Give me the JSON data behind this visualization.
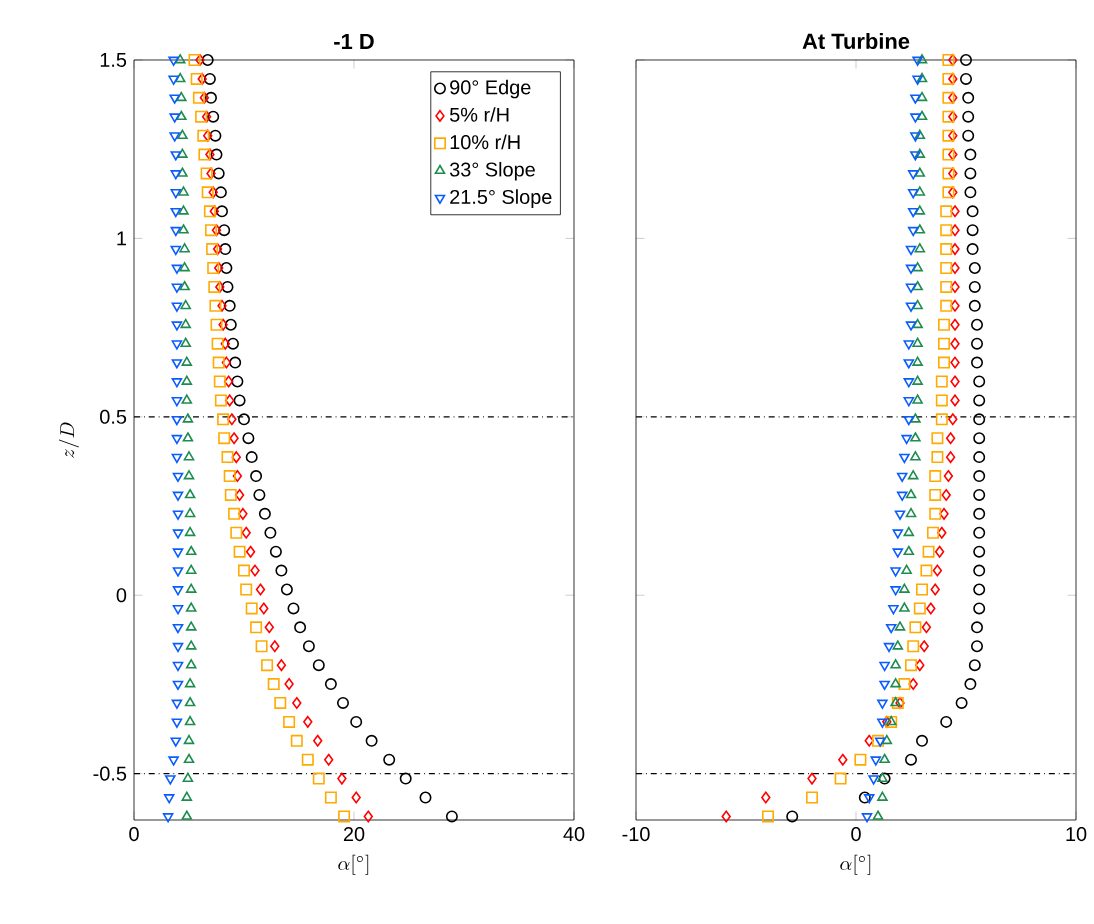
{
  "chart_data": [
    {
      "type": "scatter",
      "title": "-1 D",
      "xlabel": "\\alpha[^\\circ]",
      "ylabel": "z/D",
      "xlim": [
        0,
        40
      ],
      "ylim": [
        -0.63,
        1.5
      ],
      "xticks": [
        0,
        20,
        40
      ],
      "yticks": [
        -0.5,
        0,
        0.5,
        1,
        1.5
      ],
      "legend": "top right",
      "grid": false,
      "ref_lines": [
        {
          "axis": "y",
          "value": 0.5,
          "color": "#000000",
          "line_style": "dashdot"
        },
        {
          "axis": "y",
          "value": -0.5,
          "color": "#000000",
          "line_style": "dashdot"
        }
      ],
      "series": [
        {
          "name": "90° Edge",
          "color": "#000000",
          "marker": "circle",
          "x": [
            28.9,
            26.5,
            24.7,
            23.2,
            21.6,
            20.2,
            19.0,
            17.9,
            16.8,
            15.9,
            15.1,
            14.5,
            13.9,
            13.4,
            12.9,
            12.4,
            11.9,
            11.4,
            11.1,
            10.7,
            10.4,
            10.0,
            9.6,
            9.4,
            9.2,
            9.0,
            8.8,
            8.7,
            8.5,
            8.4,
            8.3,
            8.2,
            8.0,
            7.9,
            7.7,
            7.5,
            7.4,
            7.2,
            7.0,
            6.9,
            6.7
          ],
          "values": [
            -0.62,
            -0.567,
            -0.514,
            -0.461,
            -0.408,
            -0.355,
            -0.302,
            -0.249,
            -0.196,
            -0.143,
            -0.09,
            -0.037,
            0.016,
            0.069,
            0.122,
            0.175,
            0.228,
            0.281,
            0.334,
            0.387,
            0.44,
            0.493,
            0.546,
            0.599,
            0.652,
            0.705,
            0.758,
            0.811,
            0.864,
            0.917,
            0.97,
            1.023,
            1.076,
            1.129,
            1.182,
            1.235,
            1.288,
            1.341,
            1.394,
            1.447,
            1.5
          ]
        },
        {
          "name": "5% r/H",
          "color": "#ff0000",
          "marker": "diamond",
          "x": [
            21.3,
            20.2,
            18.9,
            17.7,
            16.7,
            15.8,
            14.8,
            14.1,
            13.4,
            12.8,
            12.3,
            11.8,
            11.5,
            11.0,
            10.6,
            10.2,
            9.9,
            9.6,
            9.4,
            9.3,
            9.1,
            8.9,
            8.7,
            8.6,
            8.4,
            8.3,
            8.1,
            8.0,
            7.8,
            7.7,
            7.6,
            7.5,
            7.3,
            7.2,
            7.0,
            6.9,
            6.7,
            6.6,
            6.4,
            6.2,
            6.0
          ],
          "values": [
            -0.62,
            -0.567,
            -0.514,
            -0.461,
            -0.408,
            -0.355,
            -0.302,
            -0.249,
            -0.196,
            -0.143,
            -0.09,
            -0.037,
            0.016,
            0.069,
            0.122,
            0.175,
            0.228,
            0.281,
            0.334,
            0.387,
            0.44,
            0.493,
            0.546,
            0.599,
            0.652,
            0.705,
            0.758,
            0.811,
            0.864,
            0.917,
            0.97,
            1.023,
            1.076,
            1.129,
            1.182,
            1.235,
            1.288,
            1.341,
            1.394,
            1.447,
            1.5
          ]
        },
        {
          "name": "10% r/H",
          "color": "#ffaa00",
          "marker": "square",
          "x": [
            19.1,
            17.9,
            16.8,
            15.8,
            14.8,
            14.1,
            13.3,
            12.7,
            12.1,
            11.6,
            11.1,
            10.7,
            10.2,
            10.0,
            9.6,
            9.3,
            9.1,
            8.8,
            8.7,
            8.5,
            8.2,
            8.1,
            7.9,
            7.8,
            7.7,
            7.6,
            7.5,
            7.4,
            7.3,
            7.2,
            7.1,
            7.0,
            6.9,
            6.7,
            6.6,
            6.4,
            6.3,
            6.1,
            5.9,
            5.7,
            5.5
          ],
          "values": [
            -0.62,
            -0.567,
            -0.514,
            -0.461,
            -0.408,
            -0.355,
            -0.302,
            -0.249,
            -0.196,
            -0.143,
            -0.09,
            -0.037,
            0.016,
            0.069,
            0.122,
            0.175,
            0.228,
            0.281,
            0.334,
            0.387,
            0.44,
            0.493,
            0.546,
            0.599,
            0.652,
            0.705,
            0.758,
            0.811,
            0.864,
            0.917,
            0.97,
            1.023,
            1.076,
            1.129,
            1.182,
            1.235,
            1.288,
            1.341,
            1.394,
            1.447,
            1.5
          ]
        },
        {
          "name": "33° Slope",
          "color": "#1e8c4e",
          "marker": "triangle",
          "x": [
            4.8,
            4.8,
            4.9,
            5.0,
            5.0,
            5.1,
            5.1,
            5.1,
            5.2,
            5.2,
            5.2,
            5.2,
            5.2,
            5.2,
            5.2,
            5.1,
            5.1,
            5.1,
            5.0,
            5.0,
            4.9,
            4.9,
            4.8,
            4.8,
            4.8,
            4.7,
            4.7,
            4.7,
            4.6,
            4.6,
            4.6,
            4.5,
            4.5,
            4.5,
            4.4,
            4.4,
            4.4,
            4.3,
            4.3,
            4.2,
            4.2
          ],
          "values": [
            -0.62,
            -0.567,
            -0.514,
            -0.461,
            -0.408,
            -0.355,
            -0.302,
            -0.249,
            -0.196,
            -0.143,
            -0.09,
            -0.037,
            0.016,
            0.069,
            0.122,
            0.175,
            0.228,
            0.281,
            0.334,
            0.387,
            0.44,
            0.493,
            0.546,
            0.599,
            0.652,
            0.705,
            0.758,
            0.811,
            0.864,
            0.917,
            0.97,
            1.023,
            1.076,
            1.129,
            1.182,
            1.235,
            1.288,
            1.341,
            1.394,
            1.447,
            1.5
          ]
        },
        {
          "name": "21.5° Slope",
          "color": "#0a5cff",
          "marker": "triangle_down",
          "x": [
            3.1,
            3.2,
            3.3,
            3.6,
            3.8,
            3.9,
            3.9,
            4.0,
            4.0,
            4.0,
            4.0,
            4.0,
            4.0,
            4.0,
            4.0,
            4.0,
            4.0,
            4.0,
            4.0,
            3.9,
            3.9,
            3.9,
            3.9,
            3.9,
            3.9,
            3.9,
            3.9,
            3.9,
            3.9,
            3.9,
            3.8,
            3.8,
            3.8,
            3.8,
            3.8,
            3.8,
            3.7,
            3.7,
            3.7,
            3.6,
            3.6
          ],
          "values": [
            -0.62,
            -0.567,
            -0.514,
            -0.461,
            -0.408,
            -0.355,
            -0.302,
            -0.249,
            -0.196,
            -0.143,
            -0.09,
            -0.037,
            0.016,
            0.069,
            0.122,
            0.175,
            0.228,
            0.281,
            0.334,
            0.387,
            0.44,
            0.493,
            0.546,
            0.599,
            0.652,
            0.705,
            0.758,
            0.811,
            0.864,
            0.917,
            0.97,
            1.023,
            1.076,
            1.129,
            1.182,
            1.235,
            1.288,
            1.341,
            1.394,
            1.447,
            1.5
          ]
        }
      ]
    },
    {
      "type": "scatter",
      "title": "At Turbine",
      "xlabel": "\\alpha[^\\circ]",
      "xlim": [
        -10,
        10
      ],
      "ylim": [
        -0.63,
        1.5
      ],
      "xticks": [
        -10,
        0,
        10
      ],
      "yticks": [
        -0.5,
        0,
        0.5,
        1,
        1.5
      ],
      "tick_labels": "x",
      "grid": false,
      "ref_lines": [
        {
          "axis": "y",
          "value": 0.5,
          "color": "#000000",
          "line_style": "dashdot"
        },
        {
          "axis": "y",
          "value": -0.5,
          "color": "#000000",
          "line_style": "dashdot"
        }
      ],
      "series": [
        {
          "color": "#000000",
          "marker": "circle",
          "x": [
            -2.9,
            0.4,
            1.3,
            2.5,
            3.0,
            4.1,
            4.8,
            5.2,
            5.4,
            5.5,
            5.5,
            5.6,
            5.6,
            5.6,
            5.6,
            5.6,
            5.6,
            5.6,
            5.6,
            5.6,
            5.6,
            5.6,
            5.6,
            5.6,
            5.5,
            5.5,
            5.5,
            5.4,
            5.4,
            5.4,
            5.3,
            5.3,
            5.3,
            5.2,
            5.2,
            5.2,
            5.1,
            5.1,
            5.1,
            5.0,
            5.0
          ],
          "values": [
            -0.62,
            -0.567,
            -0.514,
            -0.461,
            -0.408,
            -0.355,
            -0.302,
            -0.249,
            -0.196,
            -0.143,
            -0.09,
            -0.037,
            0.016,
            0.069,
            0.122,
            0.175,
            0.228,
            0.281,
            0.334,
            0.387,
            0.44,
            0.493,
            0.546,
            0.599,
            0.652,
            0.705,
            0.758,
            0.811,
            0.864,
            0.917,
            0.97,
            1.023,
            1.076,
            1.129,
            1.182,
            1.235,
            1.288,
            1.341,
            1.394,
            1.447,
            1.5
          ]
        },
        {
          "color": "#ff0000",
          "marker": "diamond",
          "x": [
            -5.9,
            -4.1,
            -2.0,
            -0.6,
            0.6,
            1.4,
            2.0,
            2.6,
            2.9,
            3.1,
            3.2,
            3.4,
            3.6,
            3.7,
            3.8,
            3.9,
            4.0,
            4.1,
            4.2,
            4.3,
            4.3,
            4.4,
            4.5,
            4.5,
            4.5,
            4.5,
            4.5,
            4.5,
            4.5,
            4.5,
            4.5,
            4.5,
            4.5,
            4.4,
            4.4,
            4.4,
            4.4,
            4.4,
            4.4,
            4.4,
            4.4
          ],
          "values": [
            -0.62,
            -0.567,
            -0.514,
            -0.461,
            -0.408,
            -0.355,
            -0.302,
            -0.249,
            -0.196,
            -0.143,
            -0.09,
            -0.037,
            0.016,
            0.069,
            0.122,
            0.175,
            0.228,
            0.281,
            0.334,
            0.387,
            0.44,
            0.493,
            0.546,
            0.599,
            0.652,
            0.705,
            0.758,
            0.811,
            0.864,
            0.917,
            0.97,
            1.023,
            1.076,
            1.129,
            1.182,
            1.235,
            1.288,
            1.341,
            1.394,
            1.447,
            1.5
          ]
        },
        {
          "color": "#ffaa00",
          "marker": "square",
          "x": [
            -4.0,
            -2.0,
            -0.7,
            0.2,
            1.0,
            1.6,
            1.9,
            2.2,
            2.5,
            2.6,
            2.7,
            2.9,
            3.0,
            3.2,
            3.3,
            3.5,
            3.6,
            3.6,
            3.6,
            3.7,
            3.7,
            3.9,
            3.9,
            3.9,
            4.0,
            4.0,
            4.0,
            4.1,
            4.1,
            4.1,
            4.1,
            4.1,
            4.1,
            4.2,
            4.2,
            4.2,
            4.2,
            4.2,
            4.2,
            4.2,
            4.2
          ],
          "values": [
            -0.62,
            -0.567,
            -0.514,
            -0.461,
            -0.408,
            -0.355,
            -0.302,
            -0.249,
            -0.196,
            -0.143,
            -0.09,
            -0.037,
            0.016,
            0.069,
            0.122,
            0.175,
            0.228,
            0.281,
            0.334,
            0.387,
            0.44,
            0.493,
            0.546,
            0.599,
            0.652,
            0.705,
            0.758,
            0.811,
            0.864,
            0.917,
            0.97,
            1.023,
            1.076,
            1.129,
            1.182,
            1.235,
            1.288,
            1.341,
            1.394,
            1.447,
            1.5
          ]
        },
        {
          "color": "#1e8c4e",
          "marker": "triangle",
          "x": [
            1.0,
            1.2,
            1.2,
            1.3,
            1.4,
            1.6,
            1.8,
            1.8,
            1.8,
            1.9,
            2.0,
            2.2,
            2.2,
            2.3,
            2.4,
            2.4,
            2.5,
            2.5,
            2.6,
            2.7,
            2.7,
            2.7,
            2.8,
            2.8,
            2.8,
            2.8,
            2.8,
            2.8,
            2.8,
            2.8,
            2.9,
            2.9,
            2.9,
            2.9,
            2.9,
            2.9,
            2.9,
            3.0,
            3.0,
            3.0,
            3.0
          ],
          "values": [
            -0.62,
            -0.567,
            -0.514,
            -0.461,
            -0.408,
            -0.355,
            -0.302,
            -0.249,
            -0.196,
            -0.143,
            -0.09,
            -0.037,
            0.016,
            0.069,
            0.122,
            0.175,
            0.228,
            0.281,
            0.334,
            0.387,
            0.44,
            0.493,
            0.546,
            0.599,
            0.652,
            0.705,
            0.758,
            0.811,
            0.864,
            0.917,
            0.97,
            1.023,
            1.076,
            1.129,
            1.182,
            1.235,
            1.288,
            1.341,
            1.394,
            1.447,
            1.5
          ]
        },
        {
          "color": "#0a5cff",
          "marker": "triangle_down",
          "x": [
            0.5,
            0.6,
            0.8,
            0.9,
            1.1,
            1.2,
            1.2,
            1.3,
            1.3,
            1.5,
            1.6,
            1.7,
            1.8,
            1.8,
            1.9,
            1.9,
            2.0,
            2.1,
            2.1,
            2.2,
            2.3,
            2.4,
            2.4,
            2.4,
            2.4,
            2.4,
            2.5,
            2.5,
            2.5,
            2.5,
            2.5,
            2.6,
            2.6,
            2.6,
            2.6,
            2.7,
            2.7,
            2.7,
            2.7,
            2.8,
            2.8
          ],
          "values": [
            -0.62,
            -0.567,
            -0.514,
            -0.461,
            -0.408,
            -0.355,
            -0.302,
            -0.249,
            -0.196,
            -0.143,
            -0.09,
            -0.037,
            0.016,
            0.069,
            0.122,
            0.175,
            0.228,
            0.281,
            0.334,
            0.387,
            0.44,
            0.493,
            0.546,
            0.599,
            0.652,
            0.705,
            0.758,
            0.811,
            0.864,
            0.917,
            0.97,
            1.023,
            1.076,
            1.129,
            1.182,
            1.235,
            1.288,
            1.341,
            1.394,
            1.447,
            1.5
          ]
        }
      ]
    }
  ]
}
